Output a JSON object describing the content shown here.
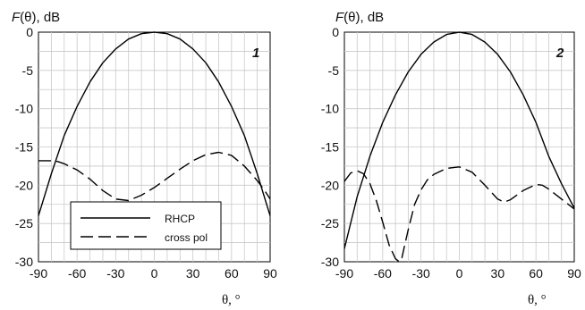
{
  "chart_data": [
    {
      "type": "line",
      "panel_label": "1",
      "ylabel_italic": "F",
      "ylabel_rest": "(θ), dB",
      "xlabel": "θ, °",
      "xlim": [
        -90,
        90
      ],
      "ylim": [
        -30,
        0
      ],
      "xticks": [
        "-90",
        "-60",
        "-30",
        "0",
        "30",
        "60",
        "90"
      ],
      "yticks": [
        "0",
        "-5",
        "-10",
        "-15",
        "-20",
        "-25",
        "-30"
      ],
      "grid": true,
      "legend_position": "bottom-left",
      "legend": [
        "RHCP",
        "cross pol"
      ],
      "series": [
        {
          "name": "RHCP",
          "style": "solid",
          "x": [
            -90,
            -80,
            -70,
            -60,
            -50,
            -40,
            -30,
            -20,
            -10,
            0,
            10,
            20,
            30,
            40,
            50,
            60,
            70,
            80,
            90
          ],
          "y": [
            -24,
            -18.5,
            -13.5,
            -9.7,
            -6.5,
            -4,
            -2.2,
            -0.9,
            -0.2,
            0,
            -0.2,
            -0.9,
            -2.2,
            -4,
            -6.5,
            -9.7,
            -13.5,
            -18.5,
            -24
          ]
        },
        {
          "name": "cross pol",
          "style": "dashed",
          "x": [
            -90,
            -80,
            -75,
            -70,
            -60,
            -50,
            -40,
            -30,
            -20,
            -10,
            0,
            10,
            20,
            30,
            40,
            50,
            60,
            70,
            80,
            85,
            90
          ],
          "y": [
            -16.8,
            -16.8,
            -16.9,
            -17.2,
            -18,
            -19.2,
            -20.7,
            -21.8,
            -22,
            -21.3,
            -20.3,
            -19.1,
            -17.9,
            -16.8,
            -16,
            -15.7,
            -16.1,
            -17.5,
            -19.4,
            -20.5,
            -21.8
          ]
        }
      ]
    },
    {
      "type": "line",
      "panel_label": "2",
      "ylabel_italic": "F",
      "ylabel_rest": "(θ), dB",
      "xlabel": "θ, °",
      "xlim": [
        -90,
        90
      ],
      "ylim": [
        -30,
        0
      ],
      "xticks": [
        "-90",
        "-60",
        "-30",
        "0",
        "30",
        "60",
        "90"
      ],
      "yticks": [
        "0",
        "-5",
        "-10",
        "-15",
        "-20",
        "-25",
        "-30"
      ],
      "grid": true,
      "series": [
        {
          "name": "RHCP",
          "style": "solid",
          "x": [
            -90,
            -80,
            -70,
            -60,
            -50,
            -40,
            -30,
            -20,
            -10,
            0,
            10,
            20,
            30,
            40,
            50,
            60,
            70,
            80,
            90
          ],
          "y": [
            -28.3,
            -21.5,
            -16.2,
            -11.8,
            -8.2,
            -5.2,
            -2.9,
            -1.3,
            -0.3,
            0,
            -0.3,
            -1.3,
            -2.9,
            -5.2,
            -8.2,
            -11.8,
            -16.2,
            -19.8,
            -23
          ]
        },
        {
          "name": "cross pol",
          "style": "dashed",
          "x": [
            -90,
            -85,
            -80,
            -75,
            -70,
            -65,
            -60,
            -55,
            -50,
            -47,
            -45,
            -43,
            -40,
            -35,
            -30,
            -25,
            -20,
            -10,
            0,
            10,
            20,
            30,
            35,
            40,
            50,
            60,
            65,
            70,
            80,
            90
          ],
          "y": [
            -19.5,
            -18.4,
            -18.1,
            -18.5,
            -19.8,
            -22,
            -24.8,
            -27.8,
            -29.6,
            -30,
            -29.5,
            -28,
            -25.8,
            -22.5,
            -20.6,
            -19.3,
            -18.6,
            -17.8,
            -17.6,
            -18.3,
            -20,
            -21.8,
            -22.2,
            -21.9,
            -20.7,
            -19.9,
            -20,
            -20.5,
            -21.8,
            -23.1
          ]
        }
      ]
    }
  ]
}
